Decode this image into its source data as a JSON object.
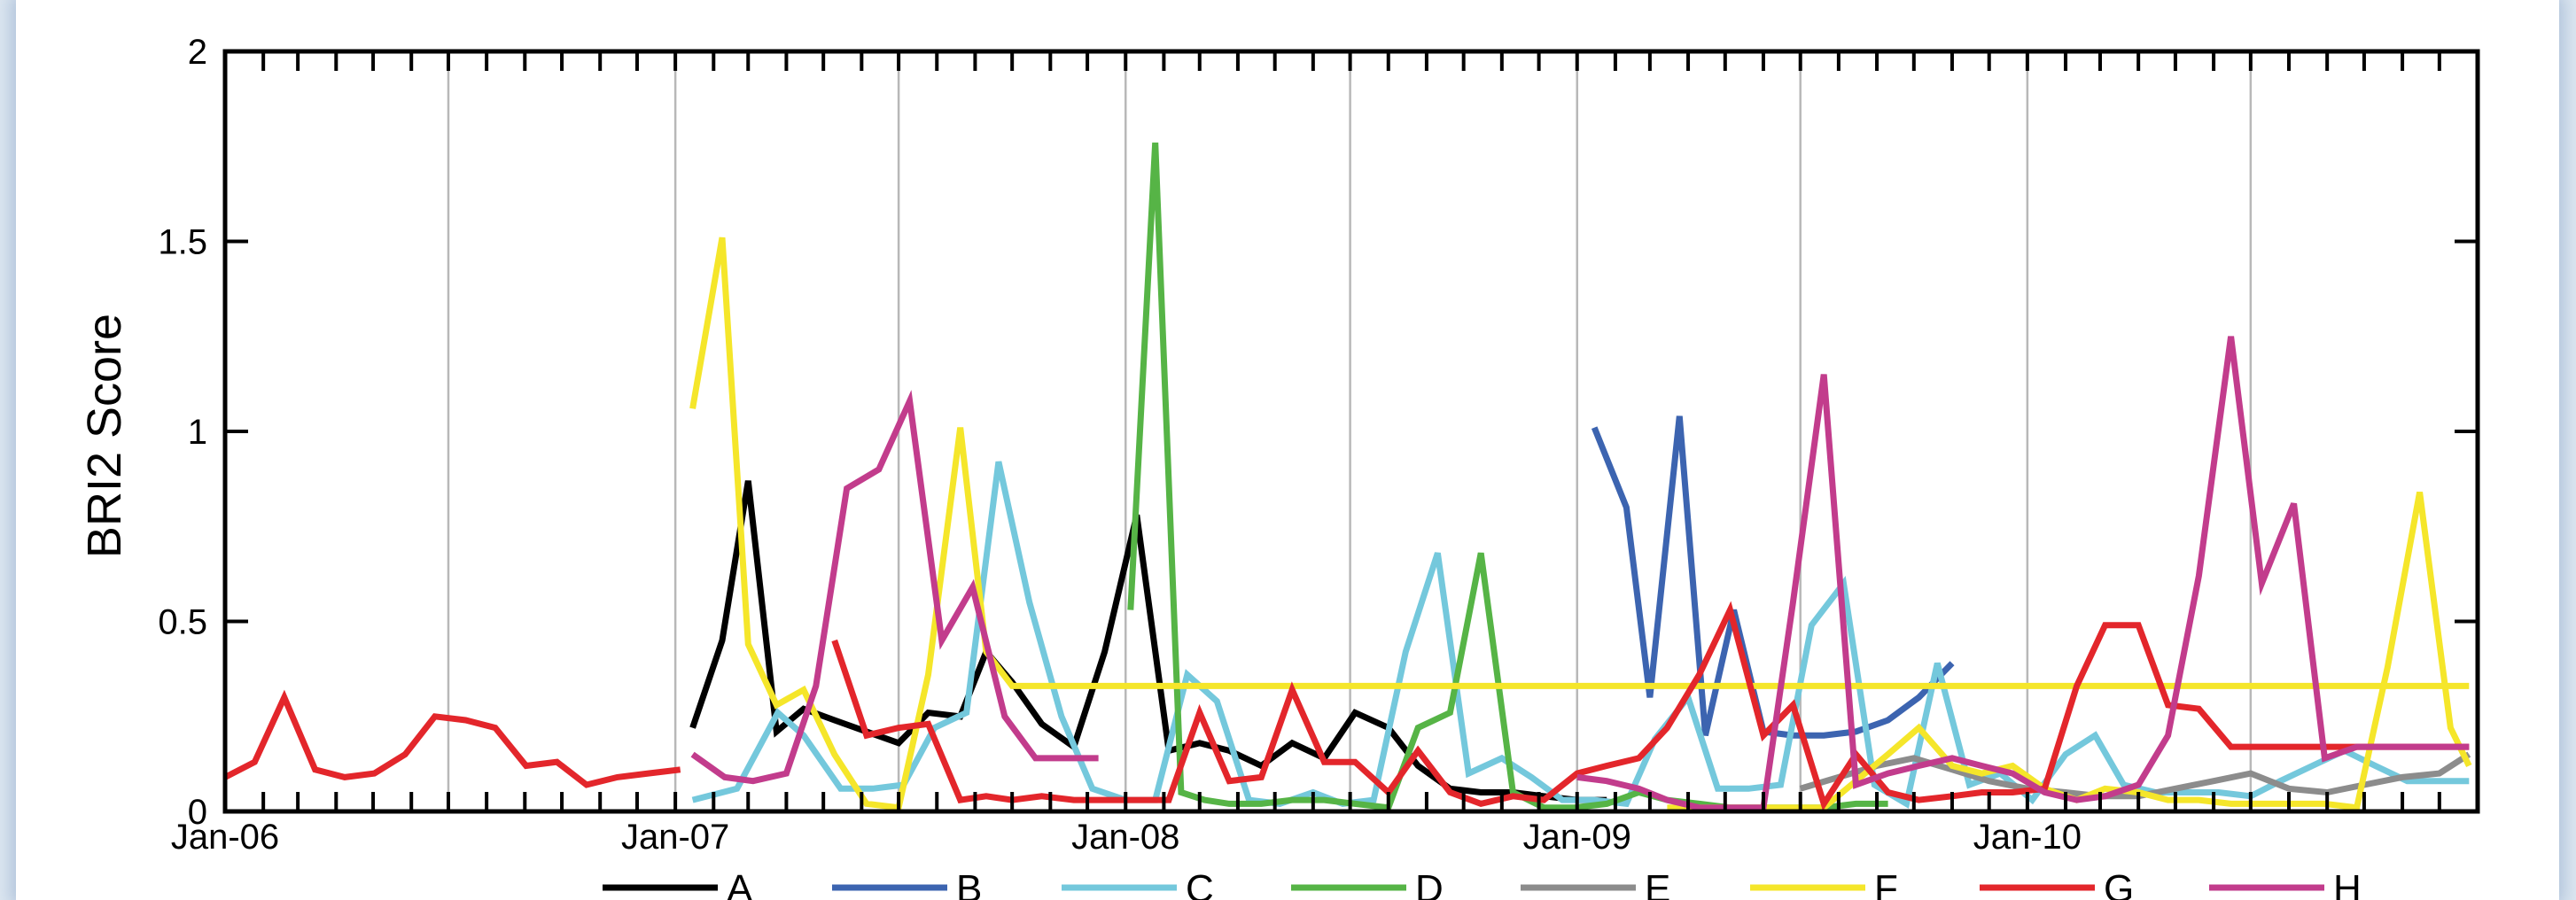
{
  "chart_data": {
    "type": "line",
    "title": "",
    "xlabel": "",
    "ylabel": "BRI2 Score",
    "xlim": [
      "2006-01-01",
      "2011-01-01"
    ],
    "ylim": [
      0,
      2
    ],
    "yticks": [
      0,
      0.5,
      1,
      1.5,
      2
    ],
    "ytick_labels": [
      "0",
      "0.5",
      "1",
      "1.5",
      "2"
    ],
    "xticks": [
      "2006-01-01",
      "2007-01-01",
      "2008-01-01",
      "2009-01-01",
      "2010-01-01"
    ],
    "xtick_labels": [
      "Jan-06",
      "Jan-07",
      "Jan-08",
      "Jan-09",
      "Jan-10"
    ],
    "grid": "vertical lines every 6 months",
    "legend": "bottom, horizontal",
    "series": [
      {
        "name": "A",
        "color": "#000000",
        "x": [
          "2007-01-15",
          "2007-02-08",
          "2007-03-01",
          "2007-03-24",
          "2007-04-15",
          "2007-05-10",
          "2007-06-05",
          "2007-07-01",
          "2007-07-25",
          "2007-08-20",
          "2007-09-10",
          "2007-10-01",
          "2007-10-25",
          "2007-11-20",
          "2007-12-15",
          "2008-01-10",
          "2008-02-05",
          "2008-03-01",
          "2008-03-25",
          "2008-04-20",
          "2008-05-15",
          "2008-06-10",
          "2008-07-05",
          "2008-08-01",
          "2008-08-25",
          "2008-09-20",
          "2008-10-15",
          "2008-11-10",
          "2008-12-05",
          "2009-01-01",
          "2009-01-25"
        ],
        "y": [
          0.22,
          0.45,
          0.87,
          0.21,
          0.27,
          0.24,
          0.21,
          0.18,
          0.26,
          0.25,
          0.42,
          0.34,
          0.23,
          0.17,
          0.42,
          0.78,
          0.16,
          0.18,
          0.16,
          0.12,
          0.18,
          0.14,
          0.26,
          0.22,
          0.12,
          0.06,
          0.05,
          0.05,
          0.04,
          0.03,
          0.03
        ]
      },
      {
        "name": "B",
        "color": "#3c64b0",
        "x": [
          "2009-01-15",
          "2009-02-10",
          "2009-03-01",
          "2009-03-25",
          "2009-04-15",
          "2009-05-08",
          "2009-06-01",
          "2009-06-25",
          "2009-07-20",
          "2009-08-15",
          "2009-09-10",
          "2009-10-05",
          "2009-11-01"
        ],
        "y": [
          1.01,
          0.8,
          0.3,
          1.04,
          0.2,
          0.53,
          0.21,
          0.2,
          0.2,
          0.21,
          0.24,
          0.3,
          0.39
        ]
      },
      {
        "name": "C",
        "color": "#74c8dc",
        "x": [
          "2007-01-15",
          "2007-02-20",
          "2007-03-25",
          "2007-04-15",
          "2007-05-15",
          "2007-06-10",
          "2007-07-05",
          "2007-07-30",
          "2007-08-25",
          "2007-09-20",
          "2007-10-15",
          "2007-11-10",
          "2007-12-05",
          "2008-01-01",
          "2008-01-25",
          "2008-02-20",
          "2008-03-15",
          "2008-04-10",
          "2008-05-05",
          "2008-06-01",
          "2008-06-25",
          "2008-07-20",
          "2008-08-15",
          "2008-09-10",
          "2008-10-05",
          "2008-11-01",
          "2008-11-25",
          "2008-12-20",
          "2009-01-15",
          "2009-02-10",
          "2009-03-05",
          "2009-04-01",
          "2009-04-25",
          "2009-05-20",
          "2009-06-15",
          "2009-07-10",
          "2009-08-05",
          "2009-08-30",
          "2009-09-25",
          "2009-10-20",
          "2009-11-15",
          "2009-12-10",
          "2010-01-05",
          "2010-02-01",
          "2010-02-25",
          "2010-03-20",
          "2010-04-15",
          "2010-05-10",
          "2010-06-05",
          "2010-07-01",
          "2010-07-25",
          "2010-08-20",
          "2010-09-15",
          "2010-10-10",
          "2010-11-05",
          "2010-12-01",
          "2010-12-25"
        ],
        "y": [
          0.03,
          0.06,
          0.26,
          0.2,
          0.06,
          0.06,
          0.07,
          0.22,
          0.26,
          0.92,
          0.55,
          0.25,
          0.06,
          0.03,
          0.03,
          0.36,
          0.29,
          0.03,
          0.02,
          0.05,
          0.02,
          0.03,
          0.42,
          0.68,
          0.1,
          0.14,
          0.09,
          0.03,
          0.03,
          0.02,
          0.19,
          0.3,
          0.06,
          0.06,
          0.07,
          0.49,
          0.6,
          0.07,
          0.02,
          0.39,
          0.07,
          0.1,
          0.03,
          0.15,
          0.2,
          0.07,
          0.05,
          0.05,
          0.05,
          0.04,
          0.08,
          0.12,
          0.16,
          0.12,
          0.08,
          0.08,
          0.08
        ]
      },
      {
        "name": "D",
        "color": "#56b446",
        "x": [
          "2008-01-05",
          "2008-01-25",
          "2008-02-15",
          "2008-03-05",
          "2008-03-25",
          "2008-04-20",
          "2008-05-15",
          "2008-06-10",
          "2008-07-05",
          "2008-08-01",
          "2008-08-25",
          "2008-09-20",
          "2008-10-15",
          "2008-11-10",
          "2008-12-05",
          "2008-12-30",
          "2009-01-25",
          "2009-02-20",
          "2009-03-15",
          "2009-04-10",
          "2009-05-05",
          "2009-06-01",
          "2009-06-25",
          "2009-07-20",
          "2009-08-15",
          "2009-09-10"
        ],
        "y": [
          0.53,
          1.76,
          0.05,
          0.03,
          0.02,
          0.02,
          0.03,
          0.03,
          0.02,
          0.01,
          0.22,
          0.26,
          0.68,
          0.05,
          0.01,
          0.01,
          0.02,
          0.05,
          0.03,
          0.02,
          0.01,
          0.01,
          0.01,
          0.01,
          0.02,
          0.02
        ]
      },
      {
        "name": "E",
        "color": "#8c8c8c",
        "x": [
          "2009-07-01",
          "2009-08-01",
          "2009-09-01",
          "2009-10-01",
          "2009-11-01",
          "2009-12-01",
          "2010-01-01",
          "2010-02-01",
          "2010-03-01",
          "2010-04-01",
          "2010-05-01",
          "2010-06-01",
          "2010-07-01",
          "2010-08-01",
          "2010-09-01",
          "2010-10-01",
          "2010-11-01",
          "2010-12-01",
          "2010-12-25"
        ],
        "y": [
          0.06,
          0.09,
          0.12,
          0.14,
          0.11,
          0.08,
          0.06,
          0.05,
          0.04,
          0.04,
          0.06,
          0.08,
          0.1,
          0.06,
          0.05,
          0.07,
          0.09,
          0.1,
          0.15
        ]
      },
      {
        "name": "F",
        "color": "#f5e62a",
        "x": [
          "2007-01-15",
          "2007-02-08",
          "2007-03-01",
          "2007-03-24",
          "2007-04-15",
          "2007-05-10",
          "2007-06-05",
          "2007-07-01",
          "2007-07-25",
          "2007-08-20",
          "2007-09-10",
          "2007-10-01",
          "2007-10-25",
          "2007-11-20",
          "2007-12-15",
          "2008-01-10",
          "2008-02-05",
          "2008-03-01",
          "2008-03-25",
          "2008-04-20",
          "2008-05-15",
          "2008-06-10",
          "2008-07-05",
          "2008-08-01",
          "2008-08-25",
          "2008-09-20",
          "2008-10-15",
          "2008-11-10",
          "2008-12-05",
          "2009-01-01",
          "2009-01-25",
          "2009-02-20",
          "2009-03-15",
          "2009-04-10",
          "2009-05-05",
          "2009-06-01",
          "2009-06-25",
          "2009-07-20",
          "2009-08-15",
          "2009-09-10",
          "2009-10-05",
          "2009-11-01",
          "2009-11-25",
          "2009-12-20",
          "2010-01-15",
          "2010-02-10",
          "2010-03-05",
          "2010-04-01",
          "2010-04-25",
          "2010-05-20",
          "2010-06-15",
          "2010-07-10",
          "2010-08-05",
          "2010-08-30",
          "2010-09-25",
          "2010-10-20",
          "2010-11-15",
          "2010-12-10",
          "2010-12-25"
        ],
        "y": [
          1.06,
          1.51,
          0.44,
          0.28,
          0.32,
          0.15,
          0.02,
          0.01,
          0.36,
          1.01,
          0.42,
          0.33,
          0.33,
          0.33,
          0.33,
          0.33,
          0.33,
          0.33,
          0.33,
          0.33,
          0.33,
          0.33,
          0.33,
          0.33,
          0.33,
          0.33,
          0.33,
          0.33,
          0.33,
          0.33,
          0.33,
          0.33,
          0.33,
          0.33,
          0.33,
          0.33,
          0.33,
          0.33,
          0.33,
          0.33,
          0.33,
          0.33,
          0.33,
          0.33,
          0.33,
          0.33,
          0.33,
          0.33,
          0.33,
          0.33,
          0.33,
          0.33,
          0.33,
          0.33,
          0.33,
          0.33,
          0.33,
          0.33,
          0.33
        ]
      },
      {
        "name": "F",
        "color": "#f5e62a",
        "x": [
          "2009-03-15",
          "2009-04-10",
          "2009-05-05",
          "2009-06-01",
          "2009-06-25",
          "2009-07-20",
          "2009-08-15",
          "2009-09-10",
          "2009-10-05",
          "2009-11-01",
          "2009-11-25",
          "2009-12-20",
          "2010-01-15",
          "2010-02-10",
          "2010-03-05",
          "2010-04-01",
          "2010-04-25",
          "2010-05-20",
          "2010-06-15",
          "2010-07-10",
          "2010-08-05",
          "2010-08-30",
          "2010-09-25",
          "2010-10-20",
          "2010-11-15",
          "2010-12-10",
          "2010-12-25"
        ],
        "y": [
          0.01,
          0.01,
          0.01,
          0.01,
          0.01,
          0.01,
          0.08,
          0.15,
          0.22,
          0.12,
          0.1,
          0.12,
          0.06,
          0.03,
          0.06,
          0.05,
          0.03,
          0.03,
          0.02,
          0.02,
          0.02,
          0.02,
          0.01,
          0.38,
          0.84,
          0.22,
          0.12
        ]
      },
      {
        "name": "G",
        "color": "#e3262b",
        "x": [
          "2006-01-01",
          "2006-01-25",
          "2006-02-18",
          "2006-03-15",
          "2006-04-08",
          "2006-05-02",
          "2006-05-27",
          "2006-06-20",
          "2006-07-15",
          "2006-08-08",
          "2006-09-02",
          "2006-09-27",
          "2006-10-21",
          "2006-11-15",
          "2006-12-10",
          "2007-01-05"
        ],
        "y": [
          0.09,
          0.13,
          0.3,
          0.11,
          0.09,
          0.1,
          0.15,
          0.25,
          0.24,
          0.22,
          0.12,
          0.13,
          0.07,
          0.09,
          0.1,
          0.11
        ]
      },
      {
        "name": "G",
        "color": "#e3262b",
        "x": [
          "2007-05-10",
          "2007-06-05",
          "2007-07-01",
          "2007-07-25",
          "2007-08-20",
          "2007-09-10",
          "2007-10-01",
          "2007-10-25",
          "2007-11-20",
          "2007-12-15",
          "2008-01-10",
          "2008-02-05",
          "2008-03-01",
          "2008-03-25",
          "2008-04-20",
          "2008-05-15",
          "2008-06-10",
          "2008-07-05",
          "2008-08-01",
          "2008-08-25",
          "2008-09-20",
          "2008-10-15",
          "2008-11-10",
          "2008-12-05",
          "2009-01-01",
          "2009-01-25",
          "2009-02-20",
          "2009-03-15",
          "2009-04-10",
          "2009-05-05",
          "2009-06-01",
          "2009-06-25",
          "2009-07-20",
          "2009-08-15",
          "2009-09-10",
          "2009-10-05",
          "2009-11-01",
          "2009-11-25",
          "2009-12-20",
          "2010-01-15",
          "2010-02-10",
          "2010-03-05",
          "2010-04-01",
          "2010-04-25",
          "2010-05-20",
          "2010-06-15",
          "2010-07-10",
          "2010-08-05",
          "2010-08-30",
          "2010-09-25",
          "2010-10-20",
          "2010-11-15",
          "2010-12-10",
          "2010-12-25"
        ],
        "y": [
          0.45,
          0.2,
          0.22,
          0.23,
          0.03,
          0.04,
          0.03,
          0.04,
          0.03,
          0.03,
          0.03,
          0.03,
          0.26,
          0.08,
          0.09,
          0.32,
          0.13,
          0.13,
          0.05,
          0.16,
          0.05,
          0.02,
          0.04,
          0.03,
          0.1,
          0.12,
          0.14,
          0.22,
          0.36,
          0.53,
          0.2,
          0.28,
          0.02,
          0.15,
          0.05,
          0.03,
          0.04,
          0.05,
          0.05,
          0.06,
          0.33,
          0.49,
          0.49,
          0.28,
          0.27,
          0.17,
          0.17,
          0.17,
          0.17,
          0.17,
          0.17,
          0.17,
          0.17,
          0.17
        ]
      },
      {
        "name": "H",
        "color": "#c23c8c",
        "x": [
          "2007-01-15",
          "2007-02-10",
          "2007-03-05",
          "2007-04-01",
          "2007-04-25",
          "2007-05-20",
          "2007-06-15",
          "2007-07-10",
          "2007-08-05",
          "2007-08-30",
          "2007-09-25",
          "2007-10-20",
          "2007-11-15",
          "2007-12-10"
        ],
        "y": [
          0.15,
          0.09,
          0.08,
          0.1,
          0.33,
          0.85,
          0.9,
          1.08,
          0.45,
          0.59,
          0.25,
          0.14,
          0.14,
          0.14
        ]
      },
      {
        "name": "H",
        "color": "#c23c8c",
        "x": [
          "2009-01-01",
          "2009-01-25",
          "2009-02-20",
          "2009-03-15",
          "2009-04-10",
          "2009-05-05",
          "2009-06-01",
          "2009-06-25",
          "2009-07-20",
          "2009-08-15",
          "2009-09-10",
          "2009-10-05",
          "2009-11-01",
          "2009-11-25",
          "2009-12-20",
          "2010-01-15",
          "2010-02-10",
          "2010-03-05",
          "2010-04-01",
          "2010-04-25",
          "2010-05-20",
          "2010-06-15",
          "2010-07-10",
          "2010-08-05",
          "2010-08-30",
          "2010-09-25",
          "2010-10-20",
          "2010-11-15",
          "2010-12-10",
          "2010-12-25"
        ],
        "y": [
          0.09,
          0.08,
          0.06,
          0.03,
          0.01,
          0.01,
          0.01,
          0.55,
          1.15,
          0.07,
          0.1,
          0.12,
          0.14,
          0.12,
          0.1,
          0.05,
          0.03,
          0.04,
          0.07,
          0.2,
          0.62,
          1.25,
          0.6,
          0.81,
          0.14,
          0.17,
          0.17,
          0.17,
          0.17,
          0.17
        ]
      }
    ]
  },
  "legend": {
    "items": [
      {
        "label": "A",
        "color": "#000000"
      },
      {
        "label": "B",
        "color": "#3c64b0"
      },
      {
        "label": "C",
        "color": "#74c8dc"
      },
      {
        "label": "D",
        "color": "#56b446"
      },
      {
        "label": "E",
        "color": "#8c8c8c"
      },
      {
        "label": "F",
        "color": "#f5e62a"
      },
      {
        "label": "G",
        "color": "#e3262b"
      },
      {
        "label": "H",
        "color": "#c23c8c"
      }
    ]
  }
}
